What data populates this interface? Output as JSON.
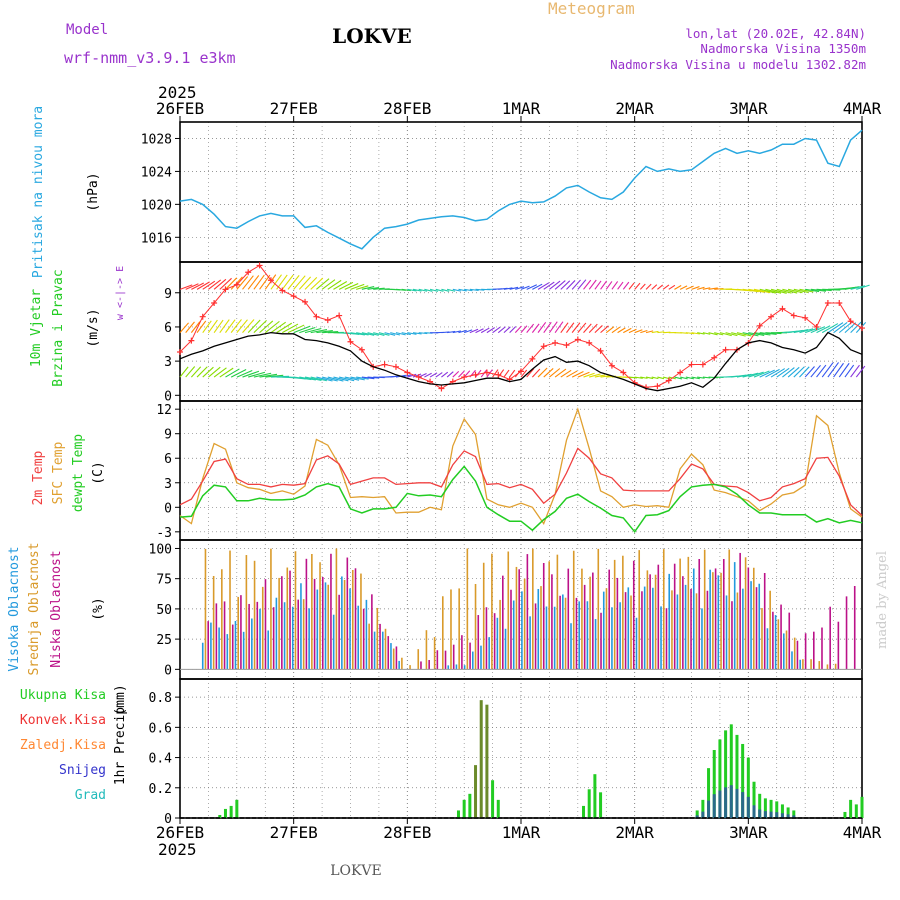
{
  "header": {
    "top_label": "Meteogram",
    "model_label": "Model",
    "model_name": "wrf-nmm_v3.9.1 e3km",
    "station": "LOKVE",
    "coords": "lon,lat (20.02E, 42.84N)",
    "elevation": "Nadmorska Visina 1350m",
    "model_elevation": "Nadmorska Visina u modelu 1302.82m",
    "year": "2025",
    "footer_station": "LOKVE",
    "credit": "made by Angel"
  },
  "colors": {
    "pressure": "#29a8e0",
    "gust": "#ff3030",
    "wind": "#000000",
    "temp2m": "#f04040",
    "sfc": "#e0a030",
    "dewpt": "#22cc22",
    "high_cloud": "#2299dd",
    "mid_cloud": "#d99a2a",
    "low_cloud": "#bb1188",
    "total_precip": "#22cc22",
    "conv_precip": "#ee3333",
    "frozen_precip": "#ff8833",
    "snow": "#3333cc",
    "hail": "#22bbbb",
    "grid": "#777777",
    "title_purple": "#9933cc"
  },
  "chart_data": [
    {
      "type": "line",
      "id": "pressure",
      "ylabel": "Pritisak na nivou mora",
      "unit": "(hPa)",
      "ylim": [
        1013,
        1030
      ],
      "yticks": [
        1016,
        1020,
        1024,
        1028
      ],
      "x_days": [
        0,
        0.1,
        0.2,
        0.3,
        0.4,
        0.5,
        0.6,
        0.7,
        0.8,
        0.9,
        1.0,
        1.1,
        1.2,
        1.3,
        1.4,
        1.5,
        1.6,
        1.7,
        1.8,
        1.9,
        2.0,
        2.1,
        2.2,
        2.3,
        2.4,
        2.5,
        2.6,
        2.7,
        2.8,
        2.9,
        3.0,
        3.1,
        3.2,
        3.3,
        3.4,
        3.5,
        3.6,
        3.7,
        3.8,
        3.9,
        4.0,
        4.1,
        4.2,
        4.3,
        4.4,
        4.5,
        4.6,
        4.7,
        4.8,
        4.9,
        5.0,
        5.1,
        5.2,
        5.3,
        5.4,
        5.5,
        5.6,
        5.7,
        5.8,
        5.9,
        6.0
      ],
      "values": [
        1020.4,
        1020.6,
        1020.0,
        1018.8,
        1017.3,
        1017.1,
        1017.9,
        1018.6,
        1018.9,
        1018.6,
        1018.6,
        1017.2,
        1017.4,
        1016.6,
        1015.9,
        1015.2,
        1014.6,
        1016.0,
        1017.1,
        1017.3,
        1017.6,
        1018.1,
        1018.3,
        1018.5,
        1018.6,
        1018.4,
        1018.0,
        1018.2,
        1019.2,
        1020.0,
        1020.4,
        1020.2,
        1020.3,
        1021.0,
        1022.0,
        1022.3,
        1021.5,
        1020.8,
        1020.6,
        1021.5,
        1023.2,
        1024.6,
        1024.0,
        1024.3,
        1024.0,
        1024.2,
        1025.2,
        1026.2,
        1026.8,
        1026.2,
        1026.5,
        1026.2,
        1026.6,
        1027.3,
        1027.3,
        1028.0,
        1027.8,
        1025.0,
        1024.6,
        1027.8,
        1029.0
      ]
    },
    {
      "type": "line",
      "id": "wind",
      "ylabel": [
        "10m Vjetar",
        "Brzina i Pravac"
      ],
      "unit": "(m/s)",
      "compass": "w <-|-> E",
      "ylim": [
        -0.5,
        11.7
      ],
      "yticks": [
        0,
        3,
        6,
        9
      ],
      "arrow_levels": [
        9.3,
        5.5,
        1.6
      ],
      "x_days": [
        0,
        0.1,
        0.2,
        0.3,
        0.4,
        0.5,
        0.6,
        0.7,
        0.8,
        0.9,
        1.0,
        1.1,
        1.2,
        1.3,
        1.4,
        1.5,
        1.6,
        1.7,
        1.8,
        1.9,
        2.0,
        2.1,
        2.2,
        2.3,
        2.4,
        2.5,
        2.6,
        2.7,
        2.8,
        2.9,
        3.0,
        3.1,
        3.2,
        3.3,
        3.4,
        3.5,
        3.6,
        3.7,
        3.8,
        3.9,
        4.0,
        4.1,
        4.2,
        4.3,
        4.4,
        4.5,
        4.6,
        4.7,
        4.8,
        4.9,
        5.0,
        5.1,
        5.2,
        5.3,
        5.4,
        5.5,
        5.6,
        5.7,
        5.8,
        5.9,
        6.0
      ],
      "series": [
        {
          "name": "Wind speed",
          "values": [
            3.2,
            3.6,
            3.9,
            4.3,
            4.6,
            4.9,
            5.2,
            5.3,
            5.5,
            5.4,
            5.4,
            4.9,
            4.8,
            4.6,
            4.3,
            3.9,
            3.0,
            2.5,
            2.2,
            1.8,
            1.5,
            1.2,
            1.0,
            0.9,
            1.0,
            1.1,
            1.3,
            1.5,
            1.5,
            1.2,
            1.4,
            2.3,
            3.1,
            3.4,
            2.9,
            3.0,
            2.6,
            2.0,
            1.7,
            1.4,
            1.0,
            0.6,
            0.4,
            0.6,
            0.8,
            1.1,
            0.7,
            1.5,
            2.8,
            4.0,
            4.6,
            4.8,
            4.6,
            4.2,
            4.0,
            3.7,
            4.2,
            5.5,
            5.0,
            4.0,
            3.6
          ]
        },
        {
          "name": "Gust",
          "values": [
            3.8,
            4.8,
            6.9,
            8.1,
            9.3,
            9.7,
            10.8,
            11.4,
            10.1,
            9.2,
            8.7,
            8.2,
            6.9,
            6.6,
            7.0,
            4.7,
            4.0,
            2.5,
            2.7,
            2.5,
            2.0,
            1.6,
            1.2,
            0.6,
            1.2,
            1.6,
            1.8,
            2.0,
            1.8,
            1.4,
            2.1,
            3.2,
            4.3,
            4.6,
            4.4,
            4.9,
            4.6,
            3.9,
            2.6,
            2.0,
            1.1,
            0.7,
            0.8,
            1.3,
            2.0,
            2.7,
            2.7,
            3.3,
            4.0,
            4.0,
            4.6,
            6.1,
            6.9,
            7.6,
            7.0,
            6.8,
            6.0,
            8.1,
            8.1,
            6.5,
            5.9
          ]
        }
      ]
    },
    {
      "type": "line",
      "id": "temperature",
      "ylabel": [
        "2m Temp",
        "SFC Temp",
        "dewpt Temp"
      ],
      "unit": "(C)",
      "ylim": [
        -4,
        13
      ],
      "yticks": [
        -3,
        0,
        3,
        6,
        9,
        12
      ],
      "x_days": [
        0,
        0.1,
        0.2,
        0.3,
        0.4,
        0.5,
        0.6,
        0.7,
        0.8,
        0.9,
        1.0,
        1.1,
        1.2,
        1.3,
        1.4,
        1.5,
        1.6,
        1.7,
        1.8,
        1.9,
        2.0,
        2.1,
        2.2,
        2.3,
        2.4,
        2.5,
        2.6,
        2.7,
        2.8,
        2.9,
        3.0,
        3.1,
        3.2,
        3.3,
        3.4,
        3.5,
        3.6,
        3.7,
        3.8,
        3.9,
        4.0,
        4.1,
        4.2,
        4.3,
        4.4,
        4.5,
        4.6,
        4.7,
        4.8,
        4.9,
        5.0,
        5.1,
        5.2,
        5.3,
        5.4,
        5.5,
        5.6,
        5.7,
        5.8,
        5.9,
        6.0
      ],
      "series": [
        {
          "name": "2m Temp",
          "values": [
            0.3,
            1.0,
            3.2,
            5.6,
            5.9,
            3.5,
            2.8,
            2.8,
            2.5,
            2.8,
            2.7,
            2.9,
            5.8,
            6.3,
            5.3,
            2.8,
            3.2,
            3.6,
            3.6,
            2.8,
            2.9,
            3.0,
            3.0,
            2.5,
            5.2,
            6.9,
            6.2,
            2.8,
            2.9,
            2.4,
            2.8,
            2.2,
            0.5,
            1.6,
            4.2,
            7.2,
            6.0,
            4.1,
            3.6,
            2.1,
            2.0,
            2.0,
            2.0,
            2.0,
            3.5,
            5.3,
            4.7,
            2.8,
            2.6,
            2.5,
            1.8,
            0.8,
            1.2,
            2.5,
            2.9,
            3.5,
            6.0,
            6.1,
            3.8,
            0.3,
            -1.0
          ]
        },
        {
          "name": "SFC Temp",
          "values": [
            -1.0,
            -2.0,
            3.5,
            7.8,
            7.1,
            3.0,
            2.4,
            2.2,
            1.7,
            2.0,
            1.6,
            2.6,
            8.3,
            7.6,
            5.2,
            1.2,
            1.3,
            1.2,
            1.3,
            -0.7,
            -0.6,
            -0.6,
            0.0,
            -0.3,
            7.5,
            10.8,
            8.9,
            1.0,
            0.3,
            0.0,
            0.5,
            0.0,
            -2.0,
            1.6,
            8.2,
            12.0,
            7.2,
            2.0,
            1.3,
            0.0,
            0.3,
            0.1,
            0.2,
            0.0,
            4.7,
            6.5,
            5.2,
            2.1,
            1.8,
            1.3,
            0.8,
            -0.4,
            0.4,
            1.5,
            1.8,
            2.7,
            11.2,
            10.0,
            4.2,
            -0.2,
            -1.2
          ]
        },
        {
          "name": "dewpt Temp",
          "values": [
            -1.2,
            -1.1,
            1.4,
            2.7,
            2.5,
            0.8,
            0.8,
            1.1,
            0.9,
            0.9,
            1.0,
            1.5,
            2.5,
            2.9,
            2.5,
            -0.2,
            -0.7,
            -0.2,
            -0.2,
            0.0,
            1.7,
            1.4,
            1.5,
            1.3,
            3.4,
            5.0,
            3.2,
            0.0,
            -0.9,
            -1.7,
            -1.7,
            -2.8,
            -1.5,
            -0.5,
            1.1,
            1.6,
            0.7,
            -0.1,
            -1.0,
            -1.3,
            -3.0,
            -1.0,
            -0.9,
            -0.4,
            1.3,
            2.5,
            2.7,
            2.8,
            2.5,
            1.6,
            0.3,
            -0.7,
            -0.7,
            -0.9,
            -0.9,
            -0.9,
            -1.8,
            -1.4,
            -1.9,
            -1.6,
            -1.9
          ]
        }
      ]
    },
    {
      "type": "bar",
      "id": "cloudiness",
      "ylabel": [
        "Visoka Oblacnost",
        "Srednja Oblacnost",
        "Niska Oblacnost"
      ],
      "unit": "(%)",
      "ylim": [
        -8,
        107
      ],
      "yticks": [
        0,
        25,
        50,
        75,
        100
      ],
      "x_days": [
        0.5,
        1.0,
        1.5,
        2.0,
        2.5,
        3.0,
        3.5,
        4.0,
        4.5,
        5.0,
        5.5,
        6.0
      ],
      "series": [
        {
          "name": "Visoka Oblacnost",
          "values": [
            40,
            70,
            80,
            0,
            5,
            70,
            60,
            70,
            85,
            90,
            0,
            0
          ]
        },
        {
          "name": "Srednja Oblacnost",
          "values": [
            100,
            100,
            100,
            0,
            100,
            100,
            100,
            100,
            100,
            100,
            10,
            0
          ]
        },
        {
          "name": "Niska Oblacnost",
          "values": [
            60,
            90,
            100,
            0,
            30,
            100,
            80,
            90,
            90,
            100,
            30,
            80
          ]
        }
      ]
    },
    {
      "type": "bar",
      "id": "precip",
      "ylabel": "1hr Precip",
      "unit": "(mm)",
      "legend": [
        "Ukupna Kisa",
        "Konvek.Kisa",
        "Zaledj.Kisa",
        "Snijeg",
        "Grad"
      ],
      "ylim": [
        0,
        0.92
      ],
      "yticks": [
        0,
        0.2,
        0.4,
        0.6,
        0.8
      ],
      "x_days": [
        0.35,
        0.4,
        0.45,
        0.5,
        2.45,
        2.5,
        2.55,
        2.6,
        2.65,
        2.7,
        2.75,
        2.8,
        3.55,
        3.6,
        3.65,
        3.7,
        4.55,
        4.6,
        4.65,
        4.7,
        4.75,
        4.8,
        4.85,
        4.9,
        4.95,
        5.0,
        5.05,
        5.1,
        5.15,
        5.2,
        5.25,
        5.3,
        5.35,
        5.4,
        5.85,
        5.9,
        5.95,
        6.0
      ],
      "values": [
        0.02,
        0.06,
        0.08,
        0.12,
        0.05,
        0.12,
        0.16,
        0.35,
        0.78,
        0.75,
        0.25,
        0.12,
        0.08,
        0.19,
        0.29,
        0.17,
        0.05,
        0.12,
        0.33,
        0.45,
        0.52,
        0.58,
        0.62,
        0.55,
        0.49,
        0.4,
        0.24,
        0.16,
        0.13,
        0.12,
        0.11,
        0.09,
        0.07,
        0.05,
        0.04,
        0.12,
        0.09,
        0.14
      ]
    }
  ],
  "x_axis": {
    "start_day": 0,
    "end_day": 6,
    "day_labels": [
      "26FEB",
      "27FEB",
      "28FEB",
      "1MAR",
      "2MAR",
      "3MAR",
      "4MAR"
    ]
  }
}
